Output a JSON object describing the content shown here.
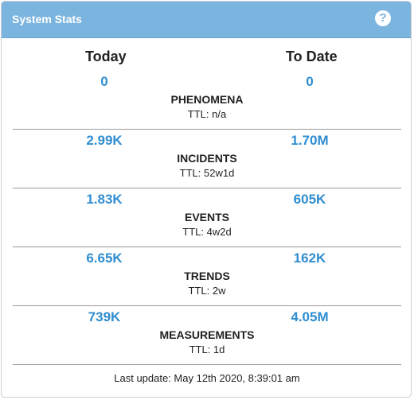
{
  "panel": {
    "title": "System Stats",
    "help_icon": "question-circle-icon",
    "accent_color": "#7bb4df",
    "value_color": "#2f8dd0"
  },
  "columns": {
    "today": "Today",
    "to_date": "To Date"
  },
  "stats": [
    {
      "name": "PHENOMENA",
      "today": "0",
      "to_date": "0",
      "ttl": "TTL: n/a"
    },
    {
      "name": "INCIDENTS",
      "today": "2.99K",
      "to_date": "1.70M",
      "ttl": "TTL: 52w1d"
    },
    {
      "name": "EVENTS",
      "today": "1.83K",
      "to_date": "605K",
      "ttl": "TTL: 4w2d"
    },
    {
      "name": "TRENDS",
      "today": "6.65K",
      "to_date": "162K",
      "ttl": "TTL: 2w"
    },
    {
      "name": "MEASUREMENTS",
      "today": "739K",
      "to_date": "4.05M",
      "ttl": "TTL: 1d"
    }
  ],
  "footer": {
    "last_update": "Last update: May 12th 2020, 8:39:01 am"
  }
}
